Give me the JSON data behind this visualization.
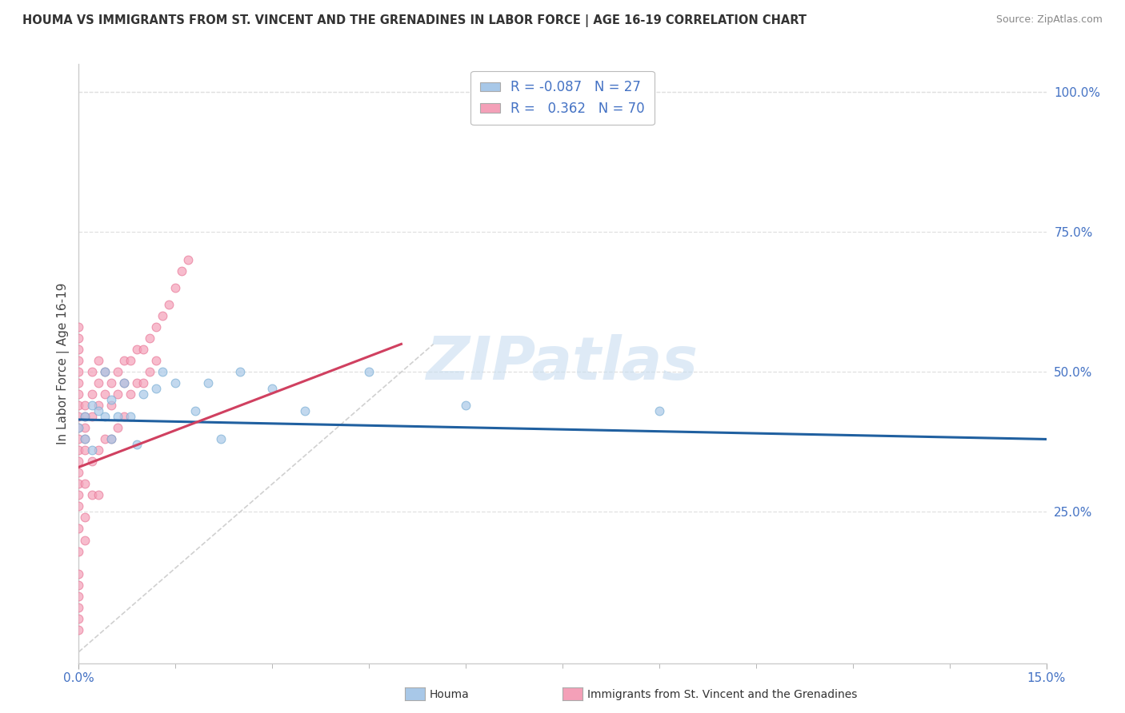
{
  "title": "HOUMA VS IMMIGRANTS FROM ST. VINCENT AND THE GRENADINES IN LABOR FORCE | AGE 16-19 CORRELATION CHART",
  "source": "Source: ZipAtlas.com",
  "ylabel": "In Labor Force | Age 16-19",
  "xlim": [
    0.0,
    0.15
  ],
  "ylim": [
    -0.02,
    1.05
  ],
  "yticks_right": [
    0.25,
    0.5,
    0.75,
    1.0
  ],
  "ytick_labels_right": [
    "25.0%",
    "50.0%",
    "75.0%",
    "100.0%"
  ],
  "watermark": "ZIPatlas",
  "houma_color": "#a8c8e8",
  "immigrants_color": "#f4a0b8",
  "houma_edge_color": "#7aafd4",
  "immigrants_edge_color": "#e87898",
  "houma_trend_color": "#2060a0",
  "immigrants_trend_color": "#d04060",
  "ref_line_color": "#d0d0d0",
  "background_color": "#ffffff",
  "grid_color": "#e0e0e0",
  "houma_scatter_x": [
    0.0,
    0.001,
    0.001,
    0.002,
    0.002,
    0.003,
    0.004,
    0.004,
    0.005,
    0.005,
    0.006,
    0.007,
    0.008,
    0.009,
    0.01,
    0.012,
    0.013,
    0.015,
    0.018,
    0.02,
    0.022,
    0.025,
    0.03,
    0.035,
    0.045,
    0.06,
    0.09
  ],
  "houma_scatter_y": [
    0.4,
    0.42,
    0.38,
    0.44,
    0.36,
    0.43,
    0.5,
    0.42,
    0.45,
    0.38,
    0.42,
    0.48,
    0.42,
    0.37,
    0.46,
    0.47,
    0.5,
    0.48,
    0.43,
    0.48,
    0.38,
    0.5,
    0.47,
    0.43,
    0.5,
    0.44,
    0.43
  ],
  "immigrants_scatter_x": [
    0.0,
    0.0,
    0.0,
    0.0,
    0.0,
    0.0,
    0.0,
    0.0,
    0.0,
    0.0,
    0.0,
    0.0,
    0.0,
    0.0,
    0.0,
    0.0,
    0.0,
    0.0,
    0.0,
    0.0,
    0.0,
    0.0,
    0.0,
    0.0,
    0.0,
    0.001,
    0.001,
    0.001,
    0.001,
    0.001,
    0.001,
    0.001,
    0.001,
    0.002,
    0.002,
    0.002,
    0.002,
    0.002,
    0.003,
    0.003,
    0.003,
    0.003,
    0.003,
    0.004,
    0.004,
    0.004,
    0.005,
    0.005,
    0.005,
    0.006,
    0.006,
    0.006,
    0.007,
    0.007,
    0.007,
    0.008,
    0.008,
    0.009,
    0.009,
    0.01,
    0.01,
    0.011,
    0.011,
    0.012,
    0.012,
    0.013,
    0.014,
    0.015,
    0.016,
    0.017
  ],
  "immigrants_scatter_y": [
    0.4,
    0.38,
    0.36,
    0.34,
    0.32,
    0.3,
    0.28,
    0.26,
    0.22,
    0.18,
    0.14,
    0.12,
    0.1,
    0.08,
    0.06,
    0.04,
    0.42,
    0.44,
    0.46,
    0.48,
    0.5,
    0.52,
    0.54,
    0.56,
    0.58,
    0.38,
    0.4,
    0.42,
    0.44,
    0.36,
    0.3,
    0.24,
    0.2,
    0.42,
    0.46,
    0.5,
    0.34,
    0.28,
    0.44,
    0.48,
    0.52,
    0.36,
    0.28,
    0.46,
    0.5,
    0.38,
    0.48,
    0.44,
    0.38,
    0.5,
    0.46,
    0.4,
    0.52,
    0.48,
    0.42,
    0.52,
    0.46,
    0.54,
    0.48,
    0.54,
    0.48,
    0.56,
    0.5,
    0.58,
    0.52,
    0.6,
    0.62,
    0.65,
    0.68,
    0.7
  ],
  "houma_trend_x": [
    0.0,
    0.15
  ],
  "houma_trend_y": [
    0.415,
    0.38
  ],
  "immigrants_trend_x": [
    0.0,
    0.05
  ],
  "immigrants_trend_y": [
    0.33,
    0.55
  ],
  "ref_line_x": [
    0.0,
    0.055
  ],
  "ref_line_y": [
    0.0,
    0.55
  ]
}
